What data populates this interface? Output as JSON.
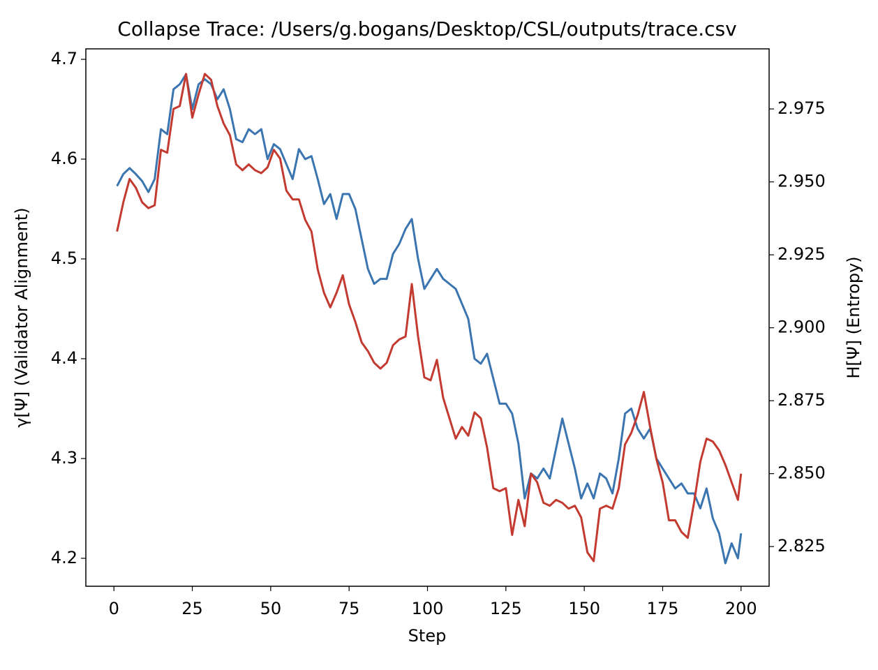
{
  "chart_data": {
    "type": "line",
    "title": "Collapse Trace: /Users/g.bogans/Desktop/CSL/outputs/trace.csv",
    "xlabel": "Step",
    "ylabel": "γ[Ψ] (Validator Alignment)",
    "y2label": "H[Ψ] (Entropy)",
    "x": [
      1,
      3,
      5,
      7,
      9,
      11,
      13,
      15,
      17,
      19,
      21,
      23,
      25,
      27,
      29,
      31,
      33,
      35,
      37,
      39,
      41,
      43,
      45,
      47,
      49,
      51,
      53,
      55,
      57,
      59,
      61,
      63,
      65,
      67,
      69,
      71,
      73,
      75,
      77,
      79,
      81,
      83,
      85,
      87,
      89,
      91,
      93,
      95,
      97,
      99,
      101,
      103,
      105,
      107,
      109,
      111,
      113,
      115,
      117,
      119,
      121,
      123,
      125,
      127,
      129,
      131,
      133,
      135,
      137,
      139,
      141,
      143,
      145,
      147,
      149,
      151,
      153,
      155,
      157,
      159,
      161,
      163,
      165,
      167,
      169,
      171,
      173,
      175,
      177,
      179,
      181,
      183,
      185,
      187,
      189,
      191,
      193,
      195,
      197,
      199,
      200
    ],
    "series": [
      {
        "name": "γ[Ψ] (Validator Alignment)",
        "color": "#3a75b0",
        "axis": "y",
        "values": [
          4.573,
          4.585,
          4.591,
          4.585,
          4.578,
          4.567,
          4.58,
          4.63,
          4.625,
          4.67,
          4.675,
          4.685,
          4.65,
          4.675,
          4.68,
          4.675,
          4.66,
          4.67,
          4.65,
          4.62,
          4.617,
          4.63,
          4.625,
          4.63,
          4.6,
          4.615,
          4.61,
          4.595,
          4.58,
          4.61,
          4.6,
          4.603,
          4.58,
          4.555,
          4.565,
          4.54,
          4.565,
          4.565,
          4.55,
          4.52,
          4.49,
          4.475,
          4.48,
          4.48,
          4.505,
          4.515,
          4.53,
          4.54,
          4.5,
          4.47,
          4.48,
          4.49,
          4.48,
          4.475,
          4.47,
          4.455,
          4.44,
          4.4,
          4.395,
          4.405,
          4.38,
          4.355,
          4.355,
          4.345,
          4.315,
          4.26,
          4.285,
          4.28,
          4.29,
          4.28,
          4.31,
          4.34,
          4.315,
          4.29,
          4.26,
          4.275,
          4.26,
          4.285,
          4.28,
          4.265,
          4.3,
          4.345,
          4.35,
          4.33,
          4.32,
          4.33,
          4.3,
          4.29,
          4.28,
          4.27,
          4.275,
          4.265,
          4.265,
          4.25,
          4.27,
          4.24,
          4.225,
          4.195,
          4.215,
          4.2,
          4.225
        ]
      },
      {
        "name": "H[Ψ] (Entropy)",
        "color": "#c33a30",
        "axis": "y2",
        "values": [
          2.933,
          2.943,
          2.951,
          2.948,
          2.943,
          2.941,
          2.942,
          2.961,
          2.96,
          2.975,
          2.976,
          2.987,
          2.972,
          2.98,
          2.987,
          2.985,
          2.976,
          2.97,
          2.966,
          2.956,
          2.954,
          2.956,
          2.954,
          2.953,
          2.955,
          2.961,
          2.958,
          2.947,
          2.944,
          2.944,
          2.937,
          2.933,
          2.92,
          2.912,
          2.907,
          2.912,
          2.918,
          2.908,
          2.902,
          2.895,
          2.892,
          2.888,
          2.886,
          2.888,
          2.894,
          2.896,
          2.897,
          2.915,
          2.897,
          2.883,
          2.882,
          2.889,
          2.876,
          2.869,
          2.862,
          2.866,
          2.863,
          2.871,
          2.869,
          2.859,
          2.845,
          2.844,
          2.845,
          2.829,
          2.841,
          2.832,
          2.85,
          2.847,
          2.84,
          2.839,
          2.841,
          2.84,
          2.838,
          2.839,
          2.835,
          2.823,
          2.82,
          2.838,
          2.839,
          2.838,
          2.845,
          2.86,
          2.864,
          2.87,
          2.878,
          2.866,
          2.855,
          2.847,
          2.834,
          2.834,
          2.83,
          2.828,
          2.84,
          2.854,
          2.862,
          2.861,
          2.858,
          2.853,
          2.847,
          2.841,
          2.85
        ]
      }
    ],
    "xlim": [
      -8.95,
      208.95
    ],
    "xticks": [
      0,
      25,
      50,
      75,
      100,
      125,
      150,
      175,
      200
    ],
    "ylim": [
      4.172,
      4.7105
    ],
    "yticks": [
      4.2,
      4.3,
      4.4,
      4.5,
      4.6,
      4.7
    ],
    "y2lim": [
      2.8114,
      2.9956
    ],
    "y2ticks": [
      2.825,
      {
        "value": 2.85,
        "label": "2.850"
      },
      2.875,
      {
        "value": 2.9,
        "label": "2.900"
      },
      2.925,
      {
        "value": 2.95,
        "label": "2.950"
      },
      2.975
    ],
    "grid": false
  }
}
